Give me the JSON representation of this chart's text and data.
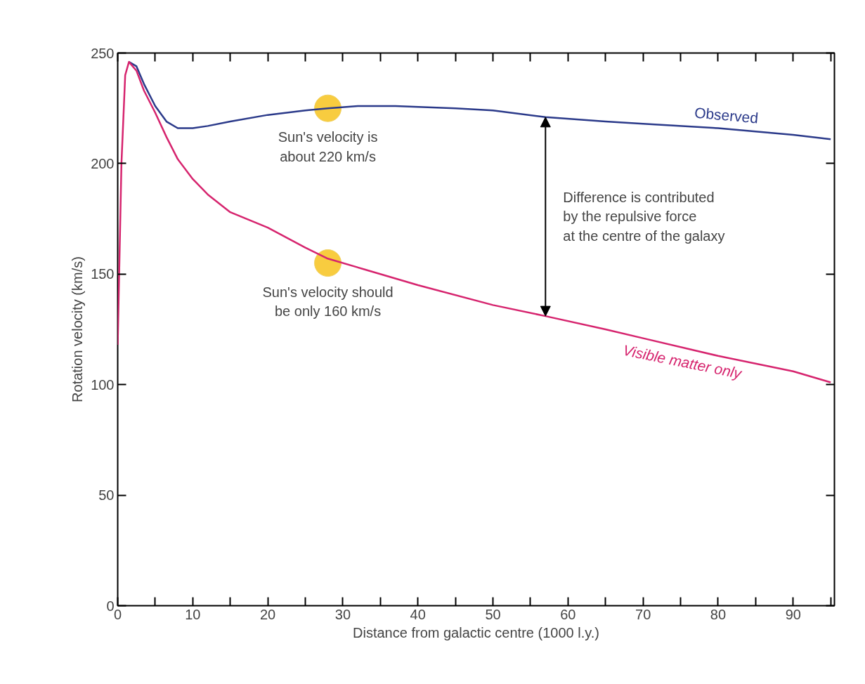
{
  "chart_data": {
    "type": "line",
    "xlabel": "Distance from galactic centre (1000 l.y.)",
    "ylabel": "Rotation velocity (km/s)",
    "xlim": [
      0,
      95.5
    ],
    "ylim": [
      0,
      250
    ],
    "xticks": [
      0,
      {
        "value": 5,
        "label": null
      },
      10,
      {
        "value": 15,
        "label": null
      },
      20,
      {
        "value": 25,
        "label": null
      },
      30,
      {
        "value": 35,
        "label": null
      },
      40,
      {
        "value": 45,
        "label": null
      },
      50,
      {
        "value": 55,
        "label": null
      },
      60,
      {
        "value": 65,
        "label": null
      },
      70,
      {
        "value": 75,
        "label": null
      },
      80,
      {
        "value": 85,
        "label": null
      },
      90,
      {
        "value": 95,
        "label": null
      }
    ],
    "yticks": [
      0,
      50,
      100,
      150,
      200,
      250
    ],
    "grid": false,
    "legend": false,
    "line_style": "solid",
    "marker": "none",
    "series": [
      {
        "name": "Observed",
        "color": "#2b3a8a",
        "x": [
          1.5,
          2.5,
          3.5,
          5,
          6.5,
          8,
          10,
          12,
          15,
          20,
          25,
          28,
          32,
          37,
          45,
          50,
          57,
          65,
          70,
          80,
          90,
          95
        ],
        "values": [
          246,
          244,
          236,
          226,
          219,
          216,
          216,
          217,
          219,
          222,
          224,
          225,
          226,
          226,
          225,
          224,
          221,
          219,
          218,
          216,
          213,
          211
        ]
      },
      {
        "name": "Visible matter only",
        "color": "#d6246e",
        "x": [
          0,
          0.5,
          1,
          1.5,
          2.5,
          3.5,
          5,
          6.5,
          8,
          10,
          12,
          15,
          20,
          25,
          28,
          33,
          40,
          50,
          57,
          65,
          70,
          80,
          90,
          95
        ],
        "values": [
          118,
          200,
          240,
          246,
          242,
          233,
          223,
          212,
          202,
          193,
          186,
          178,
          171,
          162,
          157,
          152,
          145,
          136,
          131,
          125,
          121,
          113,
          106,
          101
        ]
      },
      {
        "type": "scatter",
        "marker": "circle",
        "color": "#f7c72a",
        "x": [
          28,
          28
        ],
        "values": [
          225,
          155
        ]
      }
    ],
    "annotations": [
      "Sun's velocity is\nabout 220 km/s",
      "Sun's velocity should\nbe only 160 km/s",
      "Difference is contributed\nby the repulsive force\nat the centre of the galaxy"
    ]
  }
}
